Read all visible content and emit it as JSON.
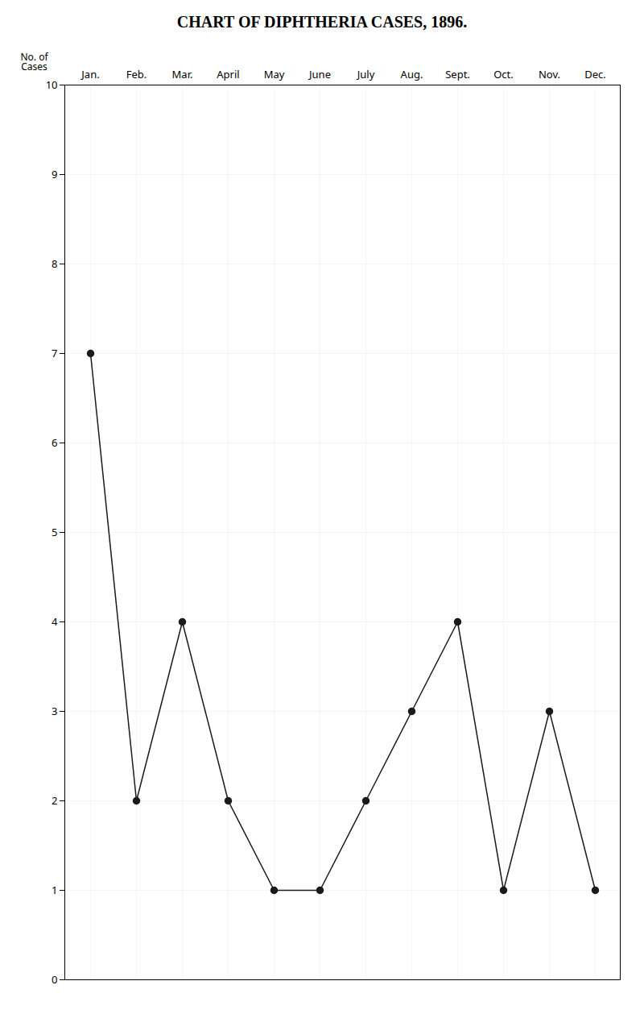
{
  "chart_data": {
    "type": "line",
    "title": "CHART OF DIPHTHERIA CASES, 1896.",
    "ylabel": "No. of\nCases",
    "categories": [
      "Jan.",
      "Feb.",
      "Mar.",
      "April",
      "May",
      "June",
      "July",
      "Aug.",
      "Sept.",
      "Oct.",
      "Nov.",
      "Dec."
    ],
    "values": [
      7,
      2,
      4,
      2,
      1,
      1,
      2,
      3,
      4,
      1,
      3,
      1
    ],
    "color": "#1a1a1a",
    "marker": "circle",
    "ylim": [
      0,
      10
    ],
    "yticks": [
      0,
      1,
      2,
      3,
      4,
      5,
      6,
      7,
      8,
      9,
      10
    ],
    "grid": true
  }
}
